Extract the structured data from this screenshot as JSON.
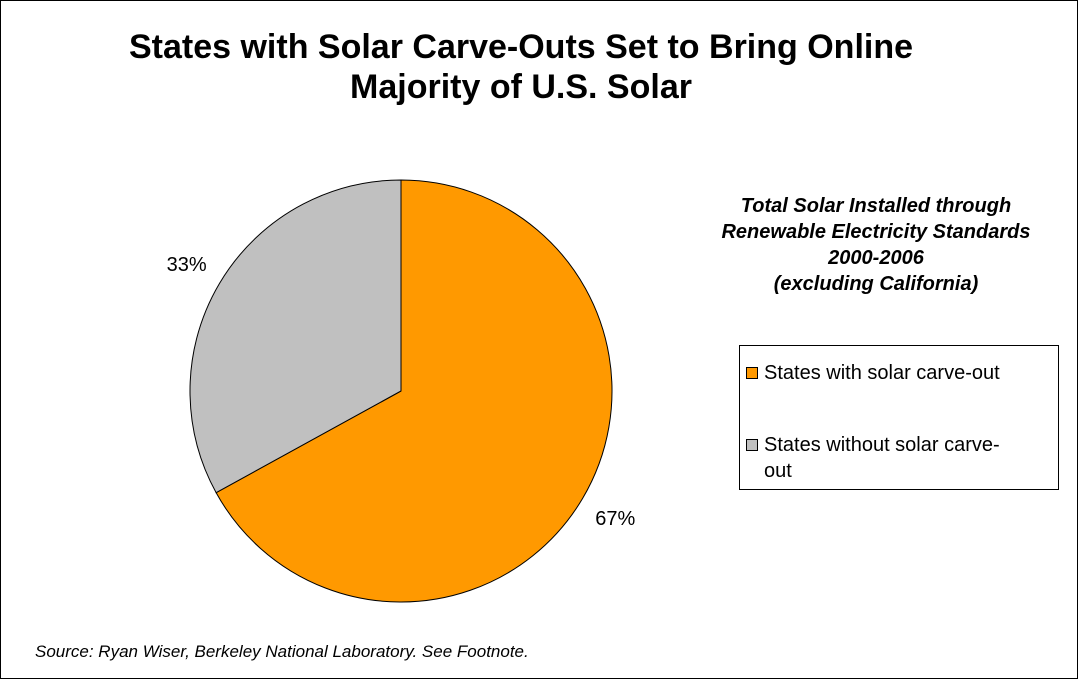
{
  "chart_data": {
    "type": "pie",
    "title_lines": [
      "States with Solar Carve-Outs Set to Bring Online",
      "Majority of U.S. Solar"
    ],
    "subtitle_lines": [
      "Total Solar Installed through",
      "Renewable Electricity Standards",
      "2000-2006",
      "(excluding California)"
    ],
    "slices": [
      {
        "name": "States with solar carve-out",
        "value": 67,
        "label": "67%",
        "color": "#FF9900"
      },
      {
        "name": "States without solar carve-out",
        "value": 33,
        "label": "33%",
        "color": "#C0C0C0"
      }
    ],
    "legend": {
      "placement": "right",
      "items": [
        {
          "lines": [
            "States with solar carve-out"
          ],
          "color": "#FF9900"
        },
        {
          "lines": [
            "States without solar carve-",
            "out"
          ],
          "color": "#C0C0C0"
        }
      ]
    },
    "start": "12 o'clock",
    "direction": "clockwise"
  },
  "source": "Source:  Ryan Wiser, Berkeley National Laboratory. See Footnote."
}
